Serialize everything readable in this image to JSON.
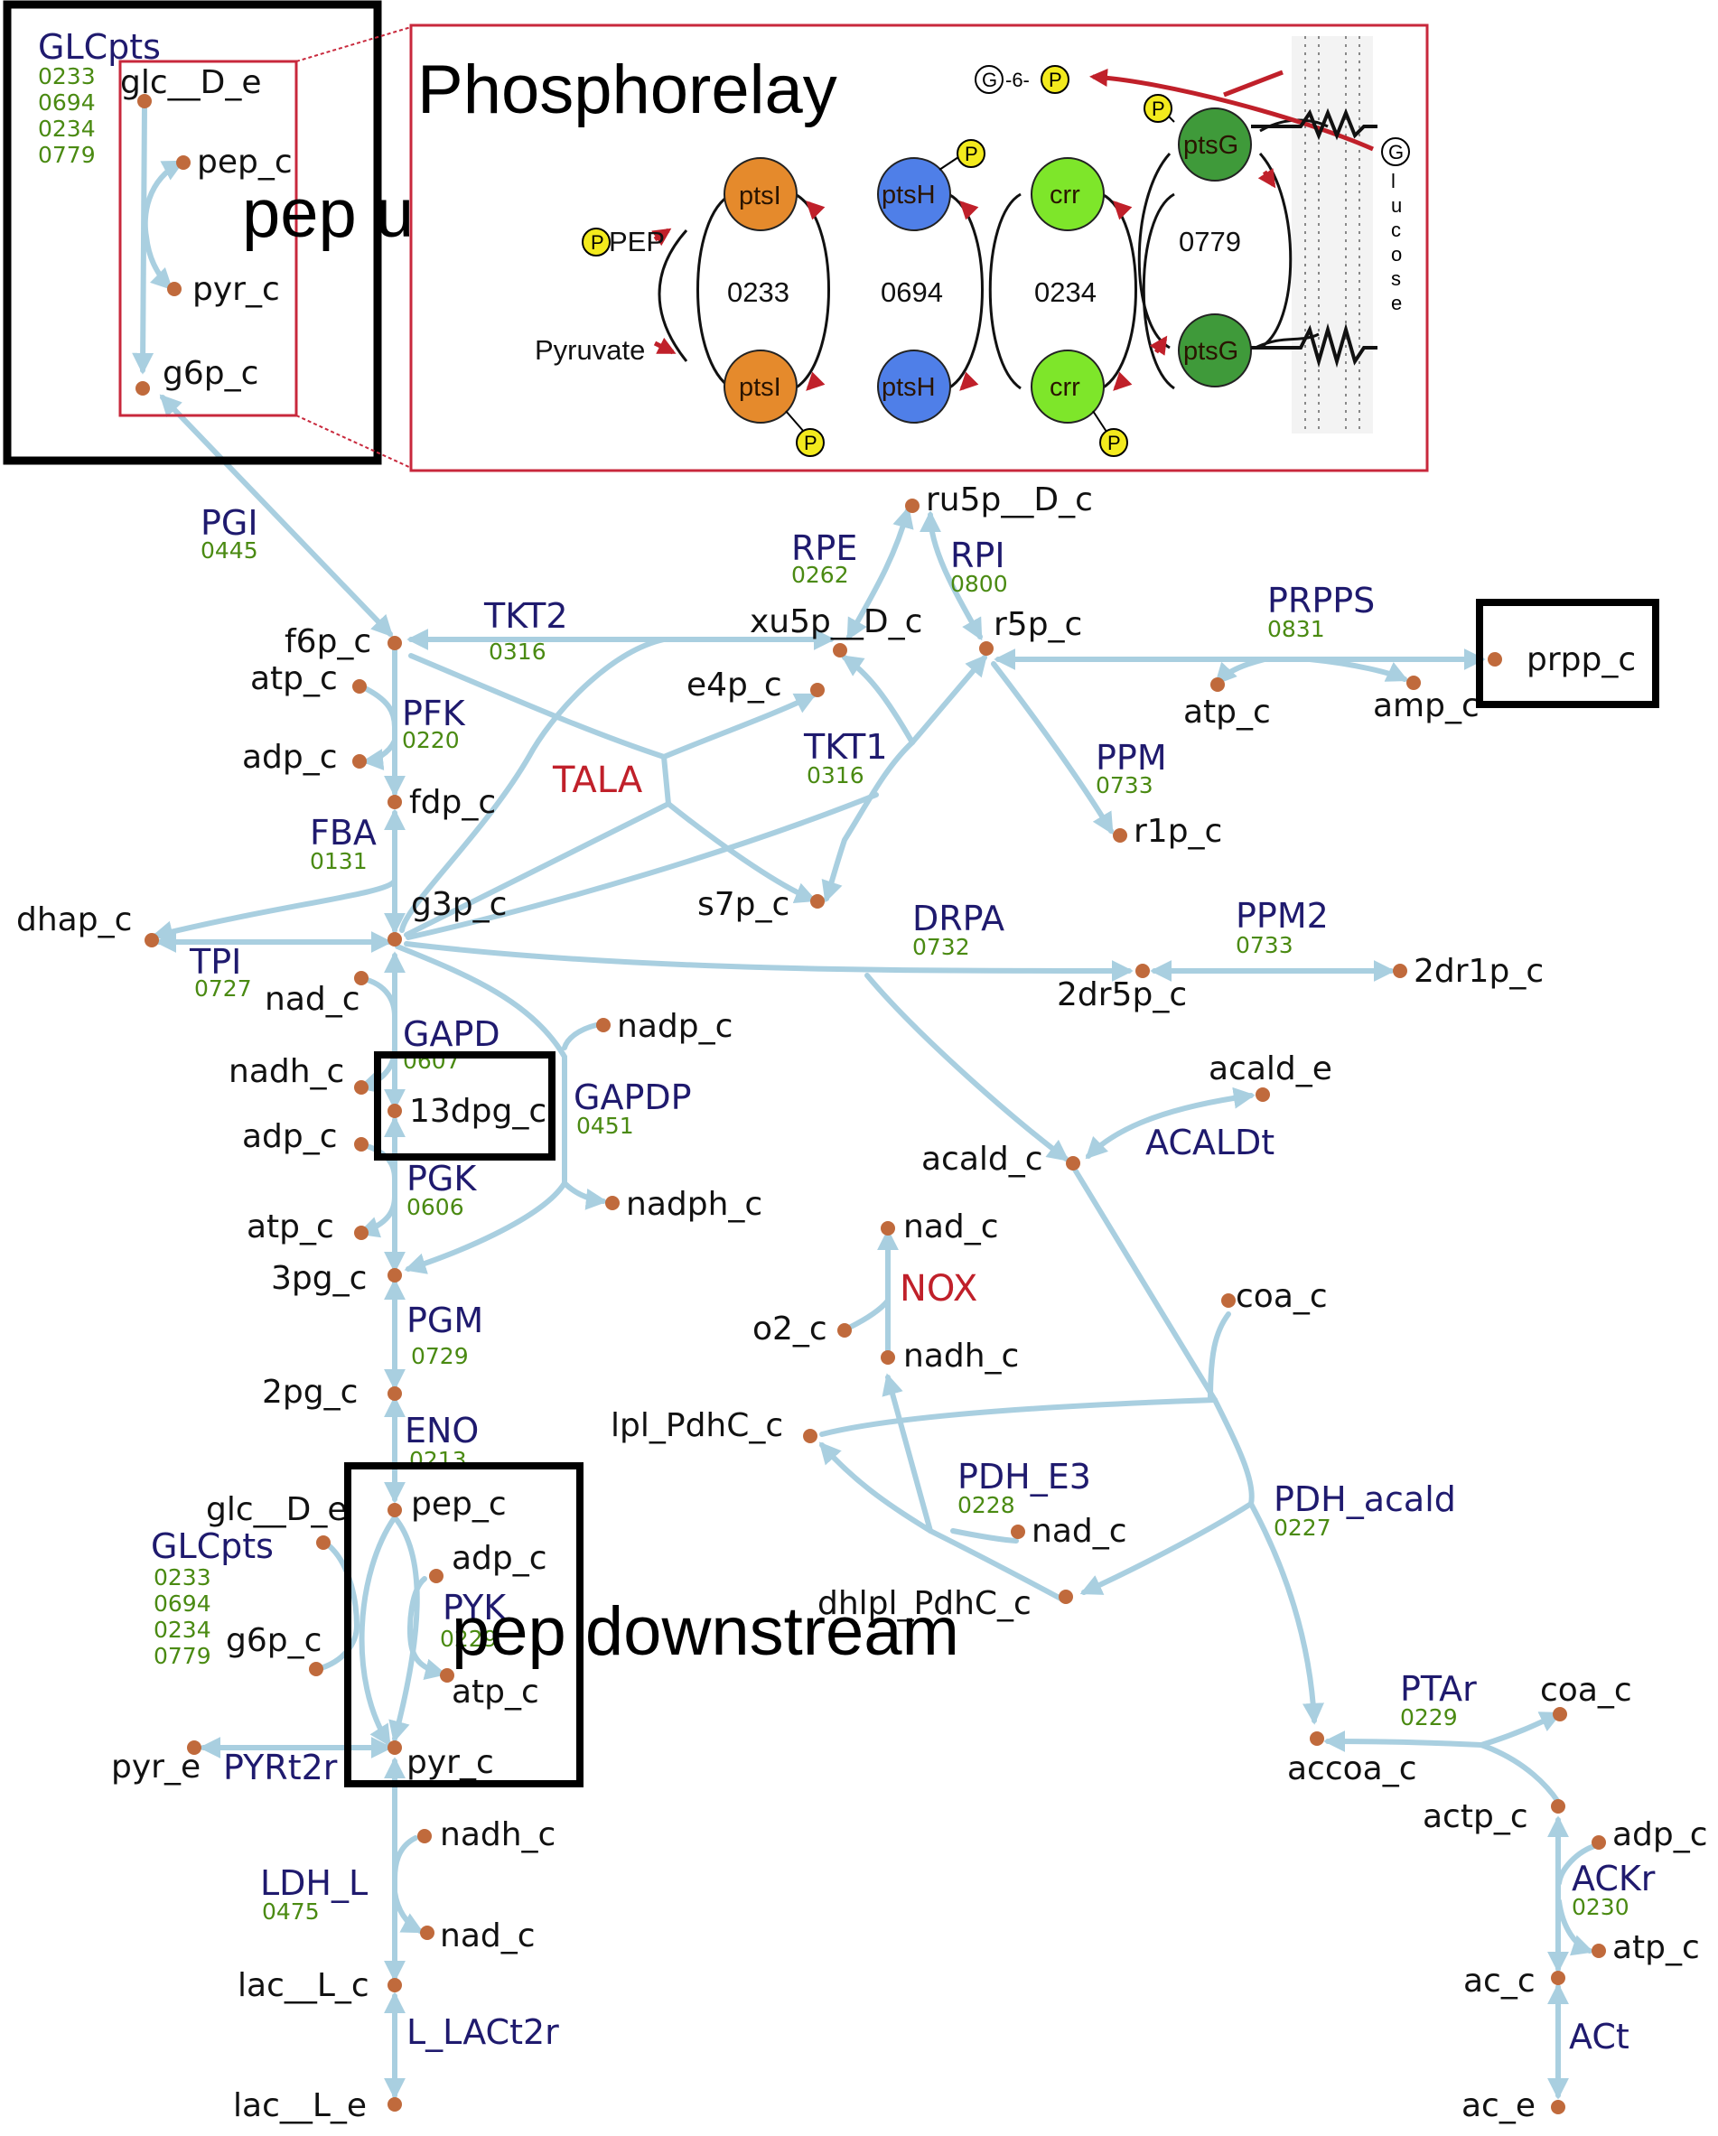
{
  "inset": {
    "title": "Phosphorelay",
    "codes": [
      "0233",
      "0694",
      "0234",
      "0779"
    ],
    "proteins": {
      "ptsI": "ptsI",
      "ptsH": "ptsH",
      "crr": "crr",
      "ptsG": "ptsG"
    },
    "pep": "PEP",
    "pyruvate": "Pyruvate",
    "p": "P",
    "g": "G",
    "g6p": "G-6-P",
    "glucose_letters": [
      "l",
      "u",
      "c",
      "o",
      "s",
      "e"
    ]
  },
  "overlays": {
    "pep_upstream": "pep upstream",
    "pep_downstream": "pep downstream"
  },
  "reactions": {
    "GLCpts_top": {
      "name": "GLCpts",
      "genes": [
        "0233",
        "0694",
        "0234",
        "0779"
      ]
    },
    "PGI": {
      "name": "PGI",
      "gene": "0445"
    },
    "TKT2": {
      "name": "TKT2",
      "gene": "0316"
    },
    "PFK": {
      "name": "PFK",
      "gene": "0220"
    },
    "TALA": {
      "name": "TALA"
    },
    "TKT1": {
      "name": "TKT1",
      "gene": "0316"
    },
    "RPE": {
      "name": "RPE",
      "gene": "0262"
    },
    "RPI": {
      "name": "RPI",
      "gene": "0800"
    },
    "PRPPS": {
      "name": "PRPPS",
      "gene": "0831"
    },
    "PPM": {
      "name": "PPM",
      "gene": "0733"
    },
    "FBA": {
      "name": "FBA",
      "gene": "0131"
    },
    "TPI": {
      "name": "TPI",
      "gene": "0727"
    },
    "DRPA": {
      "name": "DRPA",
      "gene": "0732"
    },
    "PPM2": {
      "name": "PPM2",
      "gene": "0733"
    },
    "GAPD": {
      "name": "GAPD",
      "gene": "0607"
    },
    "GAPDP": {
      "name": "GAPDP",
      "gene": "0451"
    },
    "ACALDt": {
      "name": "ACALDt"
    },
    "PGK": {
      "name": "PGK",
      "gene": "0606"
    },
    "NOX": {
      "name": "NOX"
    },
    "PGM": {
      "name": "PGM",
      "gene": "0729"
    },
    "ENO": {
      "name": "ENO",
      "gene": "0213"
    },
    "PDH_E3": {
      "name": "PDH_E3",
      "gene": "0228"
    },
    "PDH_acald": {
      "name": "PDH_acald",
      "gene": "0227"
    },
    "GLCpts_bot": {
      "name": "GLCpts",
      "genes": [
        "0233",
        "0694",
        "0234",
        "0779"
      ]
    },
    "PYK": {
      "name": "PYK",
      "gene": "0229"
    },
    "PYRt2r": {
      "name": "PYRt2r"
    },
    "PTAr": {
      "name": "PTAr",
      "gene": "0229"
    },
    "LDH_L": {
      "name": "LDH_L",
      "gene": "0475"
    },
    "ACKr": {
      "name": "ACKr",
      "gene": "0230"
    },
    "L_LACt2r": {
      "name": "L_LACt2r"
    },
    "ACt": {
      "name": "ACt"
    }
  },
  "metabolites": {
    "glc_D_e_top": "glc__D_e",
    "pep_c_top": "pep_c",
    "pyr_c_top": "pyr_c",
    "g6p_c_top": "g6p_c",
    "ru5p_D_c": "ru5p__D_c",
    "xu5p_D_c": "xu5p__D_c",
    "r5p_c": "r5p_c",
    "prpp_c": "prpp_c",
    "f6p_c": "f6p_c",
    "atp_c_pfk": "atp_c",
    "e4p_c": "e4p_c",
    "atp_c_prpps": "atp_c",
    "amp_c": "amp_c",
    "adp_c_pfk": "adp_c",
    "fdp_c": "fdp_c",
    "r1p_c": "r1p_c",
    "dhap_c": "dhap_c",
    "g3p_c": "g3p_c",
    "s7p_c": "s7p_c",
    "nad_c_gapd": "nad_c",
    "dr5p_c": "2dr5p_c",
    "dr1p_c": "2dr1p_c",
    "nadp_c": "nadp_c",
    "nadh_c_gapd": "nadh_c",
    "acald_e": "acald_e",
    "dpg13": "13dpg_c",
    "adp_c_pgk": "adp_c",
    "acald_c": "acald_c",
    "nadph_c": "nadph_c",
    "atp_c_pgk": "atp_c",
    "nad_c_nox": "nad_c",
    "pg3": "3pg_c",
    "coa_c_pdh": "coa_c",
    "o2_c": "o2_c",
    "nadh_c_nox": "nadh_c",
    "pg2": "2pg_c",
    "lpl_PdhC_c": "lpl_PdhC_c",
    "pep_c": "pep_c",
    "glc_D_e_bot": "glc__D_e",
    "nad_c_pdh": "nad_c",
    "adp_c_pyk": "adp_c",
    "dhlpl_PdhC_c": "dhlpl_PdhC_c",
    "g6p_c_bot": "g6p_c",
    "atp_c_pyk": "atp_c",
    "coa_c_pta": "coa_c",
    "pyr_e": "pyr_e",
    "pyr_c": "pyr_c",
    "accoa_c": "accoa_c",
    "actp_c": "actp_c",
    "nadh_c_ldh": "nadh_c",
    "adp_c_ack": "adp_c",
    "nad_c_ldh": "nad_c",
    "atp_c_ack": "atp_c",
    "lac_L_c": "lac__L_c",
    "ac_c": "ac_c",
    "lac_L_e": "lac__L_e",
    "ac_e": "ac_e"
  },
  "colors": {
    "edge": "#a9cfe0",
    "node": "#c06a3c",
    "reaction": "#1f1a6e",
    "gene": "#4a8a12",
    "highlight_reaction": "#c0202a",
    "inset_border": "#c8283c",
    "ptsI": "#e58a2c",
    "ptsH": "#4f7fe8",
    "crr": "#7ee62a",
    "ptsG": "#3f9a3a",
    "phospho": "#f3ea1d"
  }
}
